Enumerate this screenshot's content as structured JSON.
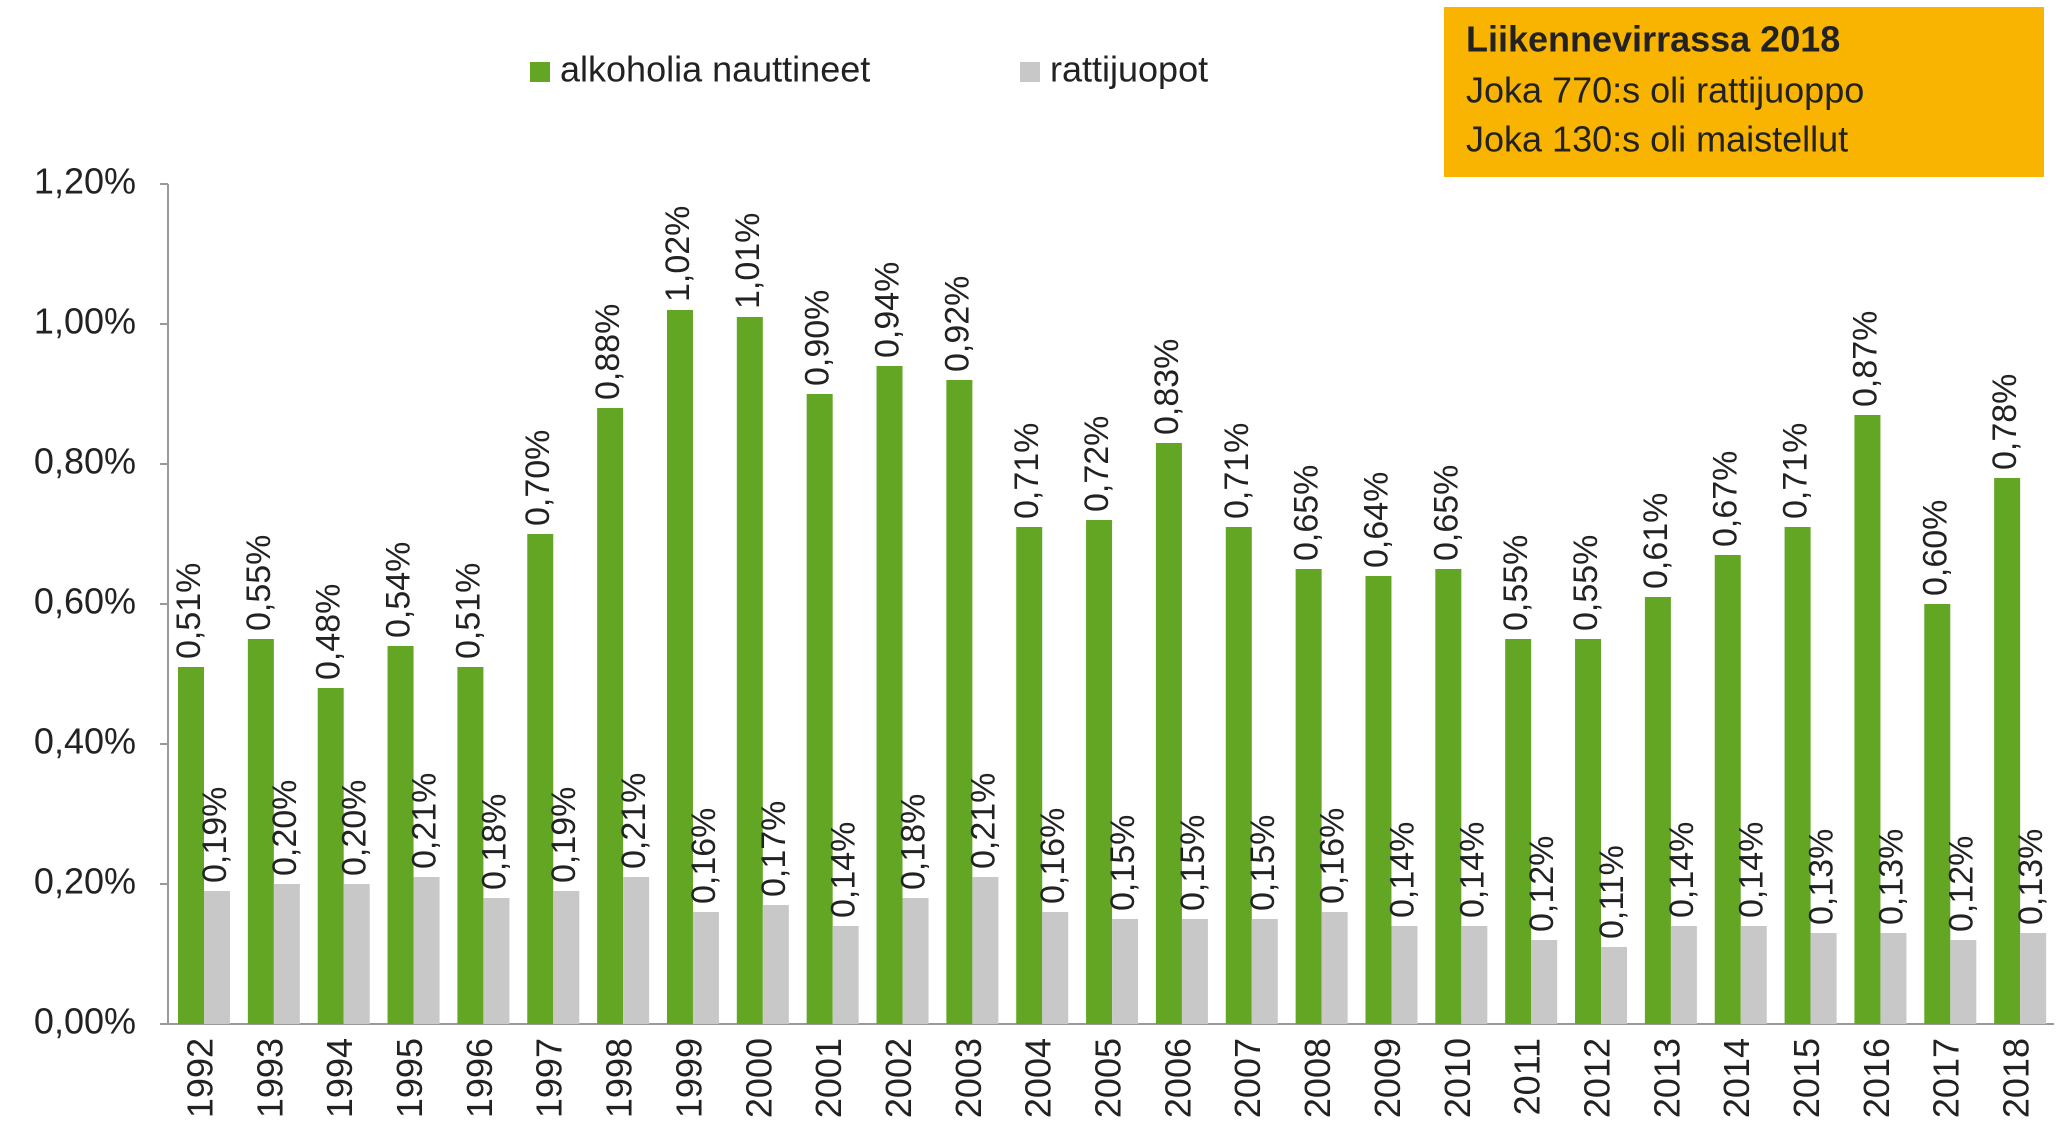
{
  "chart_data": {
    "type": "bar",
    "categories": [
      "1992",
      "1993",
      "1994",
      "1995",
      "1996",
      "1997",
      "1998",
      "1999",
      "2000",
      "2001",
      "2002",
      "2003",
      "2004",
      "2005",
      "2006",
      "2007",
      "2008",
      "2009",
      "2010",
      "2011",
      "2012",
      "2013",
      "2014",
      "2015",
      "2016",
      "2017",
      "2018"
    ],
    "series": [
      {
        "name": "alkoholia nauttineet",
        "color": "#62a623",
        "values": [
          0.51,
          0.55,
          0.48,
          0.54,
          0.51,
          0.7,
          0.88,
          1.02,
          1.01,
          0.9,
          0.94,
          0.92,
          0.71,
          0.72,
          0.83,
          0.71,
          0.65,
          0.64,
          0.65,
          0.55,
          0.55,
          0.61,
          0.67,
          0.71,
          0.87,
          0.6,
          0.78
        ],
        "value_labels": [
          "0,51%",
          "0,55%",
          "0,48%",
          "0,54%",
          "0,51%",
          "0,70%",
          "0,88%",
          "1,02%",
          "1,01%",
          "0,90%",
          "0,94%",
          "0,92%",
          "0,71%",
          "0,72%",
          "0,83%",
          "0,71%",
          "0,65%",
          "0,64%",
          "0,65%",
          "0,55%",
          "0,55%",
          "0,61%",
          "0,67%",
          "0,71%",
          "0,87%",
          "0,60%",
          "0,78%"
        ]
      },
      {
        "name": "rattijuopot",
        "color": "#c8c8c8",
        "values": [
          0.19,
          0.2,
          0.2,
          0.21,
          0.18,
          0.19,
          0.21,
          0.16,
          0.17,
          0.14,
          0.18,
          0.21,
          0.16,
          0.15,
          0.15,
          0.15,
          0.16,
          0.14,
          0.14,
          0.12,
          0.11,
          0.14,
          0.14,
          0.13,
          0.13,
          0.12,
          0.13
        ],
        "value_labels": [
          "0,19%",
          "0,20%",
          "0,20%",
          "0,21%",
          "0,18%",
          "0,19%",
          "0,21%",
          "0,16%",
          "0,17%",
          "0,14%",
          "0,18%",
          "0,21%",
          "0,16%",
          "0,15%",
          "0,15%",
          "0,15%",
          "0,16%",
          "0,14%",
          "0,14%",
          "0,12%",
          "0,11%",
          "0,14%",
          "0,14%",
          "0,13%",
          "0,13%",
          "0,12%",
          "0,13%"
        ]
      }
    ],
    "ylim": [
      0,
      1.2
    ],
    "yticks": [
      {
        "value": 0,
        "label": "0,00%"
      },
      {
        "value": 0.2,
        "label": "0,20%"
      },
      {
        "value": 0.4,
        "label": "0,40%"
      },
      {
        "value": 0.6,
        "label": "0,60%"
      },
      {
        "value": 0.8,
        "label": "0,80%"
      },
      {
        "value": 1.0,
        "label": "1,00%"
      },
      {
        "value": 1.2,
        "label": "1,20%"
      }
    ],
    "annotation": {
      "title": "Liikennevirrassa 2018",
      "lines": [
        "Joka 770:s oli rattijuoppo",
        "Joka 130:s oli maistellut"
      ]
    },
    "legend": "top"
  }
}
